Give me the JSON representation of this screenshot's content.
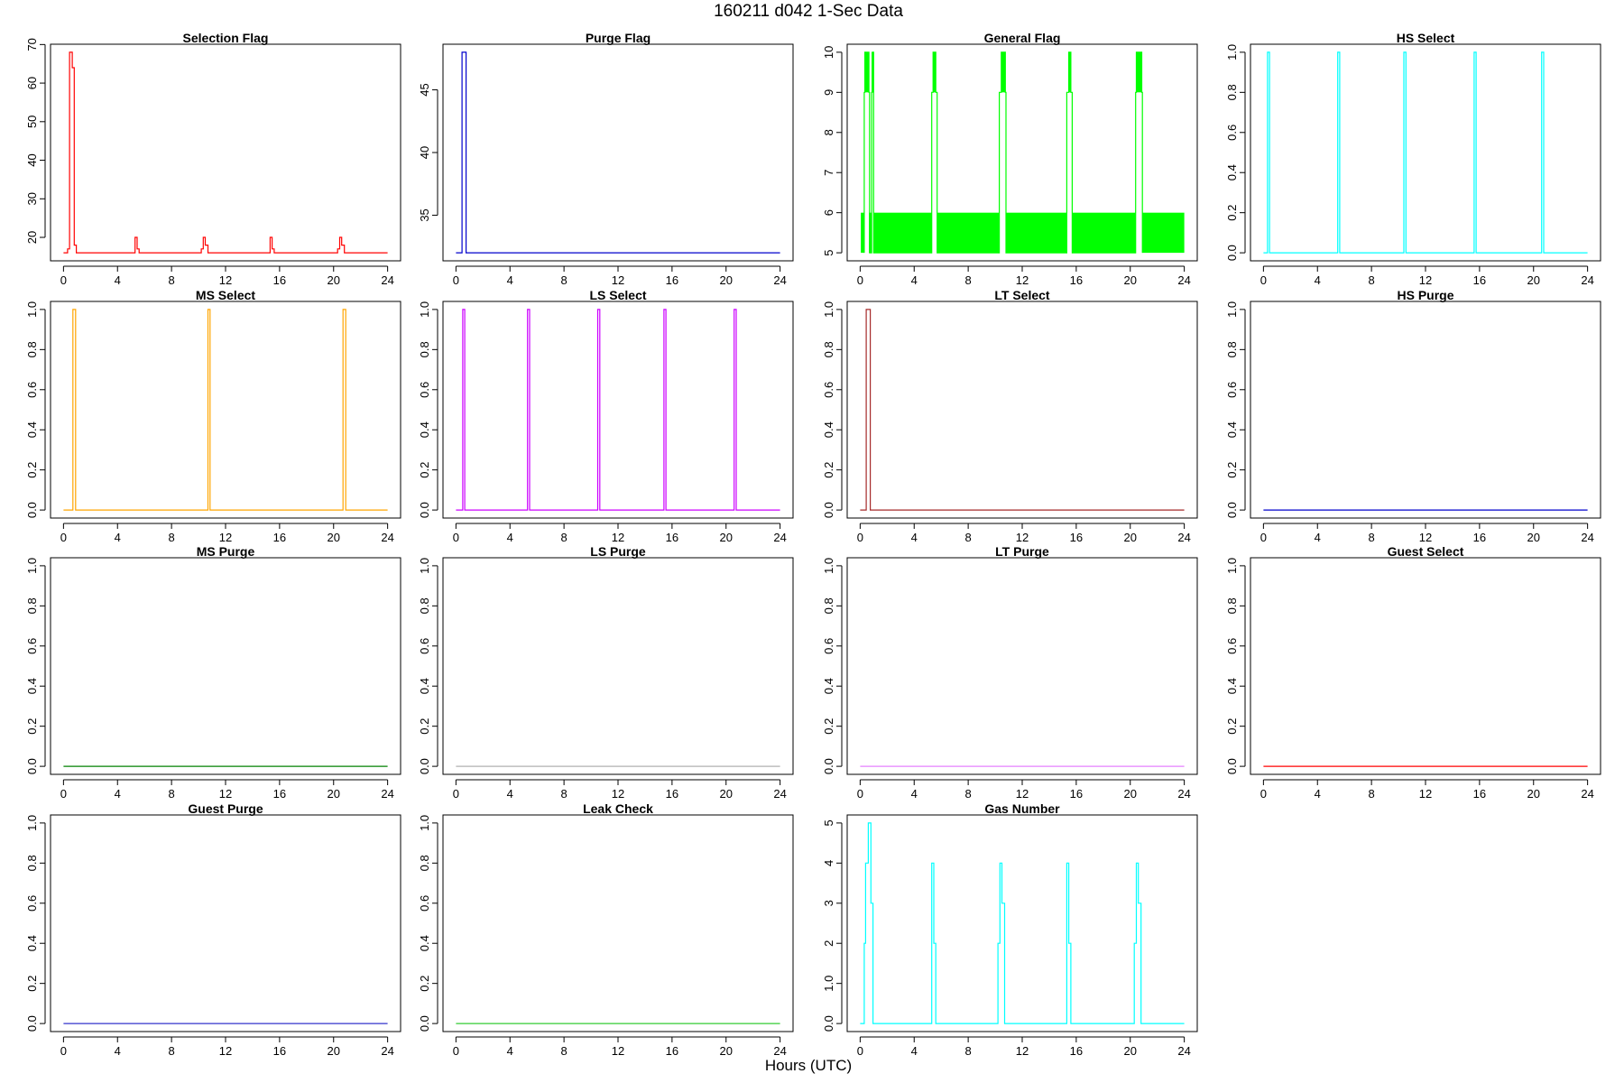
{
  "figure": {
    "title": "160211    d042    1-Sec Data",
    "xlabel": "Hours (UTC)"
  },
  "chart_data": [
    {
      "type": "line",
      "step": true,
      "title": "Selection Flag",
      "color": "#ff0000",
      "xlim": [
        0,
        24
      ],
      "ylim": [
        16,
        68
      ],
      "xticks": [
        0,
        4,
        8,
        12,
        16,
        20,
        24
      ],
      "yticks": [
        20,
        30,
        40,
        50,
        60,
        70
      ],
      "points": [
        [
          0,
          16
        ],
        [
          0.3,
          16
        ],
        [
          0.3,
          17
        ],
        [
          0.45,
          17
        ],
        [
          0.45,
          68
        ],
        [
          0.65,
          68
        ],
        [
          0.65,
          64
        ],
        [
          0.8,
          64
        ],
        [
          0.8,
          18
        ],
        [
          0.95,
          18
        ],
        [
          0.95,
          16
        ],
        [
          5.3,
          16
        ],
        [
          5.3,
          20
        ],
        [
          5.45,
          20
        ],
        [
          5.45,
          17
        ],
        [
          5.6,
          17
        ],
        [
          5.6,
          16
        ],
        [
          10.2,
          16
        ],
        [
          10.2,
          17
        ],
        [
          10.35,
          17
        ],
        [
          10.35,
          20
        ],
        [
          10.5,
          20
        ],
        [
          10.5,
          18
        ],
        [
          10.7,
          18
        ],
        [
          10.7,
          16
        ],
        [
          15.3,
          16
        ],
        [
          15.3,
          20
        ],
        [
          15.45,
          20
        ],
        [
          15.45,
          17
        ],
        [
          15.6,
          17
        ],
        [
          15.6,
          16
        ],
        [
          20.3,
          16
        ],
        [
          20.3,
          17
        ],
        [
          20.45,
          17
        ],
        [
          20.45,
          20
        ],
        [
          20.6,
          20
        ],
        [
          20.6,
          18
        ],
        [
          20.8,
          18
        ],
        [
          20.8,
          16
        ],
        [
          24,
          16
        ]
      ]
    },
    {
      "type": "line",
      "step": true,
      "title": "Purge Flag",
      "color": "#0000cc",
      "xlim": [
        0,
        24
      ],
      "ylim": [
        32,
        48
      ],
      "xticks": [
        0,
        4,
        8,
        12,
        16,
        20,
        24
      ],
      "yticks": [
        35,
        40,
        45
      ],
      "points": [
        [
          0,
          32
        ],
        [
          0.45,
          32
        ],
        [
          0.45,
          48
        ],
        [
          0.75,
          48
        ],
        [
          0.75,
          32
        ],
        [
          24,
          32
        ]
      ]
    },
    {
      "type": "line",
      "step": true,
      "title": "General Flag",
      "color": "#00ff00",
      "xlim": [
        0,
        24
      ],
      "ylim": [
        5,
        10
      ],
      "xticks": [
        0,
        4,
        8,
        12,
        16,
        20,
        24
      ],
      "yticks": [
        5,
        6,
        7,
        8,
        9,
        10
      ],
      "bands": [
        [
          0.05,
          0.3,
          5,
          6
        ],
        [
          0.65,
          0.85,
          5,
          6
        ],
        [
          1.0,
          5.3,
          5,
          6
        ],
        [
          5.7,
          10.3,
          5,
          6
        ],
        [
          10.8,
          15.3,
          5,
          6
        ],
        [
          15.7,
          20.4,
          5,
          6
        ],
        [
          20.9,
          24,
          5,
          6
        ],
        [
          0.35,
          0.65,
          9,
          10
        ],
        [
          0.85,
          1.0,
          9,
          10
        ],
        [
          5.4,
          5.6,
          9,
          10
        ],
        [
          10.45,
          10.75,
          9,
          10
        ],
        [
          15.45,
          15.6,
          9,
          10
        ],
        [
          20.45,
          20.85,
          9,
          10
        ]
      ],
      "points": [
        [
          0.3,
          5
        ],
        [
          0.3,
          9
        ],
        [
          0.35,
          9
        ],
        [
          0.35,
          10
        ],
        [
          0.65,
          10
        ],
        [
          0.65,
          9
        ],
        [
          0.7,
          9
        ],
        [
          0.7,
          5
        ],
        [
          0.85,
          5
        ],
        [
          0.85,
          9
        ],
        [
          0.9,
          9
        ],
        [
          0.9,
          10
        ],
        [
          1.0,
          10
        ],
        [
          1.0,
          9
        ],
        [
          1.0,
          5
        ],
        [
          5.3,
          5
        ],
        [
          5.3,
          9
        ],
        [
          5.4,
          9
        ],
        [
          5.4,
          10
        ],
        [
          5.6,
          10
        ],
        [
          5.6,
          9
        ],
        [
          5.7,
          9
        ],
        [
          5.7,
          5
        ],
        [
          10.3,
          5
        ],
        [
          10.3,
          9
        ],
        [
          10.45,
          9
        ],
        [
          10.45,
          10
        ],
        [
          10.75,
          10
        ],
        [
          10.75,
          9
        ],
        [
          10.8,
          9
        ],
        [
          10.8,
          5
        ],
        [
          15.3,
          5
        ],
        [
          15.3,
          9
        ],
        [
          15.45,
          9
        ],
        [
          15.45,
          10
        ],
        [
          15.6,
          10
        ],
        [
          15.6,
          9
        ],
        [
          15.7,
          9
        ],
        [
          15.7,
          5
        ],
        [
          20.4,
          5
        ],
        [
          20.4,
          9
        ],
        [
          20.45,
          9
        ],
        [
          20.45,
          10
        ],
        [
          20.85,
          10
        ],
        [
          20.85,
          9
        ],
        [
          20.9,
          9
        ],
        [
          20.9,
          5
        ]
      ]
    },
    {
      "type": "line",
      "step": true,
      "title": "HS Select",
      "color": "#00ffff",
      "xlim": [
        0,
        24
      ],
      "ylim": [
        0,
        1
      ],
      "xticks": [
        0,
        4,
        8,
        12,
        16,
        20,
        24
      ],
      "yticks": [
        0,
        0.2,
        0.4,
        0.6,
        0.8,
        1
      ],
      "points": [
        [
          0,
          0
        ],
        [
          0.3,
          0
        ],
        [
          0.3,
          1
        ],
        [
          0.45,
          1
        ],
        [
          0.45,
          0
        ],
        [
          5.5,
          0
        ],
        [
          5.5,
          1
        ],
        [
          5.65,
          1
        ],
        [
          5.65,
          0
        ],
        [
          10.4,
          0
        ],
        [
          10.4,
          1
        ],
        [
          10.55,
          1
        ],
        [
          10.55,
          0
        ],
        [
          15.6,
          0
        ],
        [
          15.6,
          1
        ],
        [
          15.75,
          1
        ],
        [
          15.75,
          0
        ],
        [
          20.6,
          0
        ],
        [
          20.6,
          1
        ],
        [
          20.75,
          1
        ],
        [
          20.75,
          0
        ],
        [
          24,
          0
        ]
      ]
    },
    {
      "type": "line",
      "step": true,
      "title": "MS Select",
      "color": "#ffa500",
      "xlim": [
        0,
        24
      ],
      "ylim": [
        0,
        1
      ],
      "xticks": [
        0,
        4,
        8,
        12,
        16,
        20,
        24
      ],
      "yticks": [
        0,
        0.2,
        0.4,
        0.6,
        0.8,
        1
      ],
      "points": [
        [
          0,
          0
        ],
        [
          0.7,
          0
        ],
        [
          0.7,
          1
        ],
        [
          0.9,
          1
        ],
        [
          0.9,
          0
        ],
        [
          10.7,
          0
        ],
        [
          10.7,
          1
        ],
        [
          10.85,
          1
        ],
        [
          10.85,
          0
        ],
        [
          20.7,
          0
        ],
        [
          20.7,
          1
        ],
        [
          20.9,
          1
        ],
        [
          20.9,
          0
        ],
        [
          24,
          0
        ]
      ]
    },
    {
      "type": "line",
      "step": true,
      "title": "LS Select",
      "color": "#cc00ff",
      "xlim": [
        0,
        24
      ],
      "ylim": [
        0,
        1
      ],
      "xticks": [
        0,
        4,
        8,
        12,
        16,
        20,
        24
      ],
      "yticks": [
        0,
        0.2,
        0.4,
        0.6,
        0.8,
        1
      ],
      "points": [
        [
          0,
          0
        ],
        [
          0.5,
          0
        ],
        [
          0.5,
          1
        ],
        [
          0.65,
          1
        ],
        [
          0.65,
          0
        ],
        [
          5.3,
          0
        ],
        [
          5.3,
          1
        ],
        [
          5.45,
          1
        ],
        [
          5.45,
          0
        ],
        [
          10.5,
          0
        ],
        [
          10.5,
          1
        ],
        [
          10.65,
          1
        ],
        [
          10.65,
          0
        ],
        [
          15.4,
          0
        ],
        [
          15.4,
          1
        ],
        [
          15.55,
          1
        ],
        [
          15.55,
          0
        ],
        [
          20.6,
          0
        ],
        [
          20.6,
          1
        ],
        [
          20.75,
          1
        ],
        [
          20.75,
          0
        ],
        [
          24,
          0
        ]
      ]
    },
    {
      "type": "line",
      "step": true,
      "title": "LT Select",
      "color": "#a52a2a",
      "xlim": [
        0,
        24
      ],
      "ylim": [
        0,
        1
      ],
      "xticks": [
        0,
        4,
        8,
        12,
        16,
        20,
        24
      ],
      "yticks": [
        0,
        0.2,
        0.4,
        0.6,
        0.8,
        1
      ],
      "points": [
        [
          0,
          0
        ],
        [
          0.45,
          0
        ],
        [
          0.45,
          1
        ],
        [
          0.75,
          1
        ],
        [
          0.75,
          0
        ],
        [
          24,
          0
        ]
      ]
    },
    {
      "type": "line",
      "step": true,
      "title": "HS Purge",
      "color": "#0000cc",
      "xlim": [
        0,
        24
      ],
      "ylim": [
        0,
        1
      ],
      "xticks": [
        0,
        4,
        8,
        12,
        16,
        20,
        24
      ],
      "yticks": [
        0,
        0.2,
        0.4,
        0.6,
        0.8,
        1
      ],
      "points": [
        [
          0,
          0
        ],
        [
          24,
          0
        ]
      ]
    },
    {
      "type": "line",
      "step": true,
      "title": "MS Purge",
      "color": "#008000",
      "xlim": [
        0,
        24
      ],
      "ylim": [
        0,
        1
      ],
      "xticks": [
        0,
        4,
        8,
        12,
        16,
        20,
        24
      ],
      "yticks": [
        0,
        0.2,
        0.4,
        0.6,
        0.8,
        1
      ],
      "points": [
        [
          0,
          0
        ],
        [
          24,
          0
        ]
      ]
    },
    {
      "type": "line",
      "step": true,
      "title": "LS Purge",
      "color": "#b0b0b0",
      "xlim": [
        0,
        24
      ],
      "ylim": [
        0,
        1
      ],
      "xticks": [
        0,
        4,
        8,
        12,
        16,
        20,
        24
      ],
      "yticks": [
        0,
        0.2,
        0.4,
        0.6,
        0.8,
        1
      ],
      "points": [
        [
          0,
          0
        ],
        [
          24,
          0
        ]
      ]
    },
    {
      "type": "line",
      "step": true,
      "title": "LT Purge",
      "color": "#e680ff",
      "xlim": [
        0,
        24
      ],
      "ylim": [
        0,
        1
      ],
      "xticks": [
        0,
        4,
        8,
        12,
        16,
        20,
        24
      ],
      "yticks": [
        0,
        0.2,
        0.4,
        0.6,
        0.8,
        1
      ],
      "points": [
        [
          0,
          0
        ],
        [
          24,
          0
        ]
      ]
    },
    {
      "type": "line",
      "step": true,
      "title": "Guest Select",
      "color": "#ff0000",
      "xlim": [
        0,
        24
      ],
      "ylim": [
        0,
        1
      ],
      "xticks": [
        0,
        4,
        8,
        12,
        16,
        20,
        24
      ],
      "yticks": [
        0,
        0.2,
        0.4,
        0.6,
        0.8,
        1
      ],
      "points": [
        [
          0,
          0
        ],
        [
          24,
          0
        ]
      ]
    },
    {
      "type": "line",
      "step": true,
      "title": "Guest Purge",
      "color": "#3333cc",
      "xlim": [
        0,
        24
      ],
      "ylim": [
        0,
        1
      ],
      "xticks": [
        0,
        4,
        8,
        12,
        16,
        20,
        24
      ],
      "yticks": [
        0,
        0.2,
        0.4,
        0.6,
        0.8,
        1
      ],
      "points": [
        [
          0,
          0
        ],
        [
          24,
          0
        ]
      ]
    },
    {
      "type": "line",
      "step": true,
      "title": "Leak Check",
      "color": "#33cc33",
      "xlim": [
        0,
        24
      ],
      "ylim": [
        0,
        1
      ],
      "xticks": [
        0,
        4,
        8,
        12,
        16,
        20,
        24
      ],
      "yticks": [
        0,
        0.2,
        0.4,
        0.6,
        0.8,
        1
      ],
      "points": [
        [
          0,
          0
        ],
        [
          24,
          0
        ]
      ]
    },
    {
      "type": "line",
      "step": true,
      "title": "Gas Number",
      "color": "#00ffff",
      "xlim": [
        0,
        24
      ],
      "ylim": [
        0,
        5
      ],
      "xticks": [
        0,
        4,
        8,
        12,
        16,
        20,
        24
      ],
      "yticks": [
        0,
        1,
        2,
        3,
        4,
        5
      ],
      "points": [
        [
          0,
          0
        ],
        [
          0.3,
          0
        ],
        [
          0.3,
          2
        ],
        [
          0.4,
          2
        ],
        [
          0.4,
          4
        ],
        [
          0.6,
          4
        ],
        [
          0.6,
          5
        ],
        [
          0.8,
          5
        ],
        [
          0.8,
          3
        ],
        [
          0.95,
          3
        ],
        [
          0.95,
          0
        ],
        [
          5.3,
          0
        ],
        [
          5.3,
          4
        ],
        [
          5.45,
          4
        ],
        [
          5.45,
          2
        ],
        [
          5.6,
          2
        ],
        [
          5.6,
          0
        ],
        [
          10.2,
          0
        ],
        [
          10.2,
          2
        ],
        [
          10.35,
          2
        ],
        [
          10.35,
          4
        ],
        [
          10.5,
          4
        ],
        [
          10.5,
          3
        ],
        [
          10.7,
          3
        ],
        [
          10.7,
          0
        ],
        [
          15.3,
          0
        ],
        [
          15.3,
          4
        ],
        [
          15.45,
          4
        ],
        [
          15.45,
          2
        ],
        [
          15.6,
          2
        ],
        [
          15.6,
          0
        ],
        [
          20.3,
          0
        ],
        [
          20.3,
          2
        ],
        [
          20.45,
          2
        ],
        [
          20.45,
          4
        ],
        [
          20.6,
          4
        ],
        [
          20.6,
          3
        ],
        [
          20.8,
          3
        ],
        [
          20.8,
          0
        ],
        [
          24,
          0
        ]
      ]
    }
  ]
}
